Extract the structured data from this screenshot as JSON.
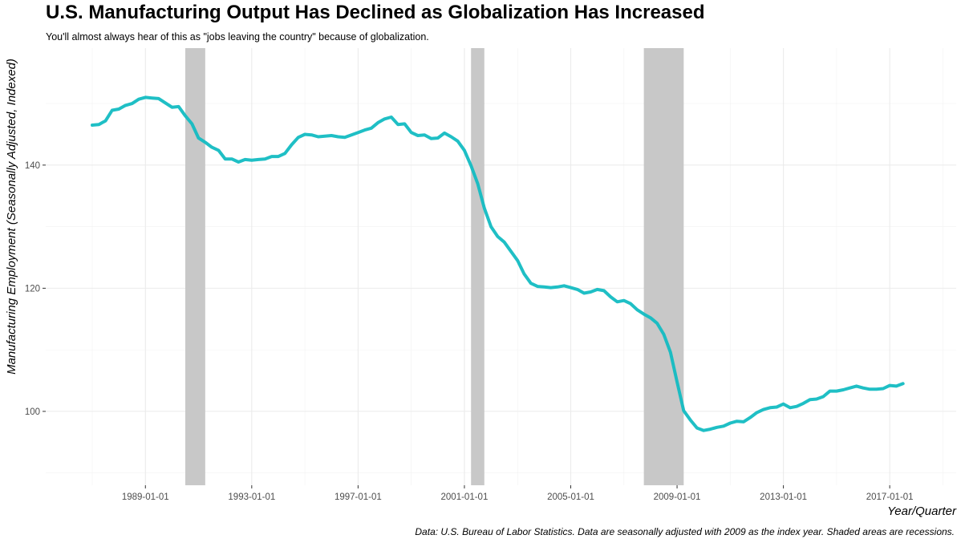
{
  "title": "U.S. Manufacturing Output Has Declined as Globalization Has Increased",
  "subtitle": "You'll almost always hear of this as \"jobs leaving the country\" because of globalization.",
  "caption": "Data:  U.S. Bureau of Labor Statistics. Data are seasonally adjusted with 2009 as the index year. Shaded areas are recessions.",
  "chart_data": {
    "type": "line",
    "xlabel": "Year/Quarter",
    "ylabel": "Manufacturing Employment (Seasonally Adjusted, Indexed)",
    "xlim": [
      1985.25,
      2019.5
    ],
    "ylim": [
      88,
      159
    ],
    "grid": true,
    "line_color": "#13bcc2",
    "recession_color": "#c8c8c8",
    "x_ticks": [
      1989,
      1993,
      1997,
      2001,
      2005,
      2009,
      2013,
      2017
    ],
    "x_tick_labels": [
      "1989-01-01",
      "1993-01-01",
      "1997-01-01",
      "2001-01-01",
      "2005-01-01",
      "2009-01-01",
      "2013-01-01",
      "2017-01-01"
    ],
    "y_ticks": [
      100,
      120,
      140
    ],
    "y_tick_labels": [
      "100",
      "120",
      "140"
    ],
    "recessions": [
      [
        1990.5,
        1991.25
      ],
      [
        2001.25,
        2001.75
      ],
      [
        2007.75,
        2009.25
      ]
    ],
    "series": [
      {
        "name": "Manufacturing Employment Index",
        "x": [
          1987.0,
          1987.25,
          1987.5,
          1987.75,
          1988.0,
          1988.25,
          1988.5,
          1988.75,
          1989.0,
          1989.25,
          1989.5,
          1989.75,
          1990.0,
          1990.25,
          1990.5,
          1990.75,
          1991.0,
          1991.25,
          1991.5,
          1991.75,
          1992.0,
          1992.25,
          1992.5,
          1992.75,
          1993.0,
          1993.25,
          1993.5,
          1993.75,
          1994.0,
          1994.25,
          1994.5,
          1994.75,
          1995.0,
          1995.25,
          1995.5,
          1995.75,
          1996.0,
          1996.25,
          1996.5,
          1996.75,
          1997.0,
          1997.25,
          1997.5,
          1997.75,
          1998.0,
          1998.25,
          1998.5,
          1998.75,
          1999.0,
          1999.25,
          1999.5,
          1999.75,
          2000.0,
          2000.25,
          2000.5,
          2000.75,
          2001.0,
          2001.25,
          2001.5,
          2001.75,
          2002.0,
          2002.25,
          2002.5,
          2002.75,
          2003.0,
          2003.25,
          2003.5,
          2003.75,
          2004.0,
          2004.25,
          2004.5,
          2004.75,
          2005.0,
          2005.25,
          2005.5,
          2005.75,
          2006.0,
          2006.25,
          2006.5,
          2006.75,
          2007.0,
          2007.25,
          2007.5,
          2007.75,
          2008.0,
          2008.25,
          2008.5,
          2008.75,
          2009.0,
          2009.25,
          2009.5,
          2009.75,
          2010.0,
          2010.25,
          2010.5,
          2010.75,
          2011.0,
          2011.25,
          2011.5,
          2011.75,
          2012.0,
          2012.25,
          2012.5,
          2012.75,
          2013.0,
          2013.25,
          2013.5,
          2013.75,
          2014.0,
          2014.25,
          2014.5,
          2014.75,
          2015.0,
          2015.25,
          2015.5,
          2015.75,
          2016.0,
          2016.25,
          2016.5,
          2016.75,
          2017.0,
          2017.25,
          2017.5
        ],
        "y": [
          146.5,
          146.6,
          147.2,
          148.9,
          149.1,
          149.7,
          150.0,
          150.7,
          151.0,
          150.9,
          150.8,
          150.1,
          149.4,
          149.5,
          148.0,
          146.7,
          144.4,
          143.7,
          142.9,
          142.4,
          141.0,
          141.0,
          140.5,
          140.9,
          140.8,
          140.9,
          141.0,
          141.4,
          141.4,
          141.9,
          143.3,
          144.5,
          145.0,
          144.9,
          144.6,
          144.7,
          144.8,
          144.6,
          144.5,
          144.9,
          145.3,
          145.7,
          146.0,
          146.9,
          147.5,
          147.8,
          146.6,
          146.7,
          145.3,
          144.8,
          144.9,
          144.3,
          144.4,
          145.2,
          144.6,
          143.9,
          142.4,
          139.9,
          137.0,
          133.0,
          130.0,
          128.4,
          127.5,
          126.0,
          124.5,
          122.3,
          120.8,
          120.3,
          120.2,
          120.1,
          120.2,
          120.4,
          120.1,
          119.8,
          119.2,
          119.4,
          119.8,
          119.6,
          118.6,
          117.8,
          118.0,
          117.5,
          116.5,
          115.8,
          115.2,
          114.3,
          112.5,
          109.6,
          104.8,
          100.1,
          98.6,
          97.3,
          96.9,
          97.1,
          97.4,
          97.6,
          98.1,
          98.4,
          98.3,
          99.0,
          99.8,
          100.3,
          100.6,
          100.7,
          101.2,
          100.6,
          100.8,
          101.3,
          101.9,
          102.0,
          102.4,
          103.3,
          103.3,
          103.5,
          103.8,
          104.1,
          103.8,
          103.6,
          103.6,
          103.7,
          104.2,
          104.1,
          104.5
        ]
      }
    ]
  }
}
